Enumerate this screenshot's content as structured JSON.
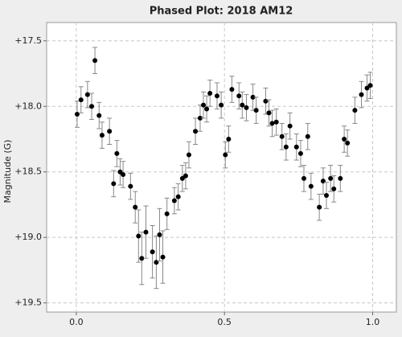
{
  "chart_data": {
    "type": "scatter",
    "title": "Phased Plot: 2018 AM12",
    "y_label": "Magnitude (G)",
    "x": [
      0.003,
      0.016,
      0.038,
      0.052,
      0.063,
      0.077,
      0.087,
      0.112,
      0.126,
      0.137,
      0.148,
      0.158,
      0.183,
      0.199,
      0.21,
      0.221,
      0.235,
      0.257,
      0.27,
      0.281,
      0.292,
      0.306,
      0.331,
      0.344,
      0.358,
      0.369,
      0.38,
      0.402,
      0.418,
      0.429,
      0.44,
      0.451,
      0.475,
      0.489,
      0.503,
      0.514,
      0.525,
      0.549,
      0.56,
      0.574,
      0.596,
      0.607,
      0.639,
      0.65,
      0.661,
      0.675,
      0.694,
      0.708,
      0.721,
      0.743,
      0.757,
      0.768,
      0.781,
      0.792,
      0.82,
      0.833,
      0.844,
      0.858,
      0.869,
      0.891,
      0.904,
      0.915,
      0.94,
      0.962,
      0.981,
      0.992
    ],
    "y": [
      18.06,
      17.95,
      17.91,
      18.0,
      17.65,
      18.07,
      18.22,
      18.19,
      18.59,
      18.36,
      18.5,
      18.52,
      18.61,
      18.77,
      18.99,
      19.16,
      18.96,
      19.11,
      19.19,
      18.98,
      19.15,
      18.82,
      18.72,
      18.69,
      18.55,
      18.53,
      18.37,
      18.19,
      18.09,
      17.99,
      18.02,
      17.9,
      17.92,
      17.99,
      18.37,
      18.25,
      17.87,
      17.92,
      17.99,
      18.01,
      17.93,
      18.03,
      17.96,
      18.05,
      18.13,
      18.12,
      18.23,
      18.31,
      18.15,
      18.31,
      18.36,
      18.55,
      18.23,
      18.61,
      18.77,
      18.57,
      18.68,
      18.55,
      18.63,
      18.55,
      18.25,
      18.28,
      18.03,
      17.91,
      17.86,
      17.84
    ],
    "error": [
      0.1,
      0.1,
      0.1,
      0.1,
      0.1,
      0.1,
      0.1,
      0.1,
      0.1,
      0.1,
      0.1,
      0.1,
      0.1,
      0.12,
      0.2,
      0.2,
      0.2,
      0.2,
      0.2,
      0.2,
      0.2,
      0.12,
      0.1,
      0.1,
      0.1,
      0.1,
      0.1,
      0.1,
      0.1,
      0.1,
      0.1,
      0.1,
      0.1,
      0.1,
      0.1,
      0.1,
      0.1,
      0.1,
      0.1,
      0.1,
      0.1,
      0.1,
      0.1,
      0.1,
      0.1,
      0.1,
      0.1,
      0.1,
      0.1,
      0.1,
      0.1,
      0.1,
      0.1,
      0.1,
      0.1,
      0.1,
      0.1,
      0.1,
      0.1,
      0.1,
      0.1,
      0.1,
      0.1,
      0.1,
      0.1,
      0.1
    ],
    "point_color": "#000000",
    "error_color": "#888888",
    "xlim": [
      -0.1,
      1.08
    ],
    "xticks": [
      {
        "value": 0,
        "label": "0.0"
      },
      0.5,
      {
        "value": 1,
        "label": "1.0"
      }
    ],
    "ylim": [
      17.36,
      19.57
    ],
    "y_inverted": true,
    "yticks": [
      {
        "value": 17.5,
        "label": "+17.5"
      },
      {
        "value": 18,
        "label": "+18.0"
      },
      {
        "value": 18.5,
        "label": "+18.5"
      },
      {
        "value": 19,
        "label": "+19.0"
      },
      {
        "value": 19.5,
        "label": "+19.5"
      }
    ],
    "grid": true
  }
}
